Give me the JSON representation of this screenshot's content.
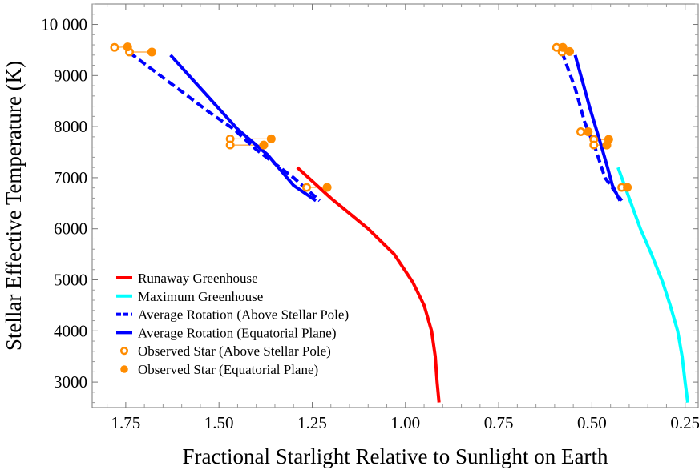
{
  "chart_data": {
    "type": "line",
    "title": "",
    "xlabel": "Fractional Starlight Relative to Sunlight on Earth",
    "ylabel": "Stellar Effective Temperature (K)",
    "x_reversed": true,
    "xlim": [
      1.84,
      0.215
    ],
    "ylim": [
      2500,
      10400
    ],
    "grid": false,
    "legend_position": "lower-left",
    "x_ticks": [
      {
        "value": 1.75,
        "label": "1.75"
      },
      {
        "value": 1.5,
        "label": "1.50"
      },
      {
        "value": 1.25,
        "label": "1.25"
      },
      {
        "value": 1.0,
        "label": "1.00"
      },
      {
        "value": 0.75,
        "label": "0.75"
      },
      {
        "value": 0.5,
        "label": "0.50"
      },
      {
        "value": 0.25,
        "label": "0.25"
      }
    ],
    "y_ticks": [
      {
        "value": 3000,
        "label": "3000"
      },
      {
        "value": 4000,
        "label": "4000"
      },
      {
        "value": 5000,
        "label": "5000"
      },
      {
        "value": 6000,
        "label": "6000"
      },
      {
        "value": 7000,
        "label": "7000"
      },
      {
        "value": 8000,
        "label": "8000"
      },
      {
        "value": 9000,
        "label": "9000"
      },
      {
        "value": 10000,
        "label": "10 000"
      }
    ],
    "series": [
      {
        "name": "Runaway Greenhouse",
        "style": "solid",
        "color": "#ff0000",
        "points": [
          [
            1.29,
            7200
          ],
          [
            1.2,
            6600
          ],
          [
            1.1,
            6000
          ],
          [
            1.03,
            5500
          ],
          [
            0.98,
            4950
          ],
          [
            0.95,
            4500
          ],
          [
            0.93,
            4000
          ],
          [
            0.92,
            3500
          ],
          [
            0.915,
            3000
          ],
          [
            0.91,
            2600
          ]
        ]
      },
      {
        "name": "Maximum Greenhouse",
        "style": "solid",
        "color": "#00ffff",
        "points": [
          [
            0.43,
            7200
          ],
          [
            0.4,
            6600
          ],
          [
            0.37,
            6000
          ],
          [
            0.34,
            5500
          ],
          [
            0.31,
            4950
          ],
          [
            0.29,
            4500
          ],
          [
            0.27,
            4000
          ],
          [
            0.258,
            3500
          ],
          [
            0.25,
            3000
          ],
          [
            0.243,
            2600
          ]
        ]
      },
      {
        "name": "Average Rotation (Above Stellar Pole)",
        "style": "dashed",
        "color": "#0000ff",
        "segments": [
          [
            [
              1.74,
              9450
            ],
            [
              1.63,
              8850
            ],
            [
              1.52,
              8250
            ],
            [
              1.46,
              7950
            ],
            [
              1.4,
              7550
            ],
            [
              1.3,
              7000
            ],
            [
              1.23,
              6550
            ]
          ],
          [
            [
              0.58,
              9450
            ],
            [
              0.545,
              8750
            ],
            [
              0.52,
              8100
            ],
            [
              0.49,
              7550
            ],
            [
              0.465,
              7000
            ],
            [
              0.42,
              6550
            ]
          ]
        ]
      },
      {
        "name": "Average Rotation (Equatorial Plane)",
        "style": "solid",
        "color": "#0000ff",
        "segments": [
          [
            [
              1.63,
              9400
            ],
            [
              1.5,
              8350
            ],
            [
              1.45,
              7950
            ],
            [
              1.37,
              7450
            ],
            [
              1.3,
              6850
            ],
            [
              1.24,
              6550
            ]
          ],
          [
            [
              0.545,
              9400
            ],
            [
              0.505,
              8350
            ],
            [
              0.48,
              7750
            ],
            [
              0.46,
              7250
            ],
            [
              0.445,
              6850
            ],
            [
              0.425,
              6550
            ]
          ]
        ]
      },
      {
        "name": "Observed Star (Above Stellar Pole)",
        "style": "open-marker",
        "color": "#ff8c00",
        "points": [
          [
            1.78,
            9550
          ],
          [
            1.74,
            9460
          ],
          [
            1.47,
            7760
          ],
          [
            1.47,
            7640
          ],
          [
            1.265,
            6810
          ],
          [
            0.595,
            9550
          ],
          [
            0.58,
            9460
          ],
          [
            0.53,
            7900
          ],
          [
            0.495,
            7750
          ],
          [
            0.495,
            7640
          ],
          [
            0.42,
            6810
          ]
        ]
      },
      {
        "name": "Observed Star (Equatorial Plane)",
        "style": "filled-marker",
        "color": "#ff8c00",
        "points": [
          [
            1.745,
            9560
          ],
          [
            1.68,
            9460
          ],
          [
            1.36,
            7760
          ],
          [
            1.38,
            7640
          ],
          [
            1.21,
            6810
          ],
          [
            0.578,
            9550
          ],
          [
            0.56,
            9470
          ],
          [
            0.51,
            7900
          ],
          [
            0.455,
            7750
          ],
          [
            0.46,
            7640
          ],
          [
            0.405,
            6810
          ]
        ]
      }
    ],
    "pairs": [
      [
        [
          1.78,
          9550
        ],
        [
          1.745,
          9560
        ]
      ],
      [
        [
          1.74,
          9460
        ],
        [
          1.68,
          9460
        ]
      ],
      [
        [
          1.47,
          7760
        ],
        [
          1.36,
          7760
        ]
      ],
      [
        [
          1.47,
          7640
        ],
        [
          1.38,
          7640
        ]
      ],
      [
        [
          1.265,
          6810
        ],
        [
          1.21,
          6810
        ]
      ],
      [
        [
          0.595,
          9550
        ],
        [
          0.578,
          9550
        ]
      ],
      [
        [
          0.58,
          9460
        ],
        [
          0.56,
          9470
        ]
      ],
      [
        [
          0.53,
          7900
        ],
        [
          0.51,
          7900
        ]
      ],
      [
        [
          0.495,
          7750
        ],
        [
          0.455,
          7750
        ]
      ],
      [
        [
          0.495,
          7640
        ],
        [
          0.46,
          7640
        ]
      ],
      [
        [
          0.42,
          6810
        ],
        [
          0.405,
          6810
        ]
      ]
    ]
  }
}
